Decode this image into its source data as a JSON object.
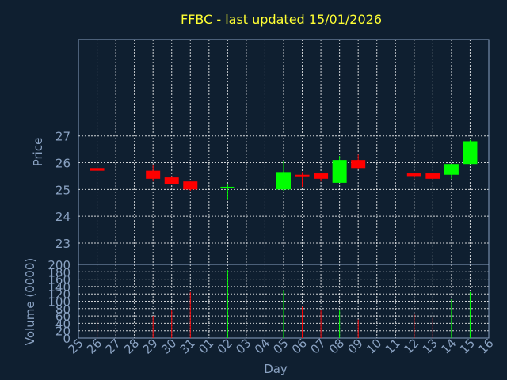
{
  "chart_data": {
    "type": "candlestick",
    "title": "FFBC - last updated 15/01/2026",
    "xlabel": "Day",
    "price_ylabel": "Price",
    "volume_ylabel": "Volume (0000)",
    "x_ticks": [
      "25",
      "26",
      "27",
      "28",
      "29",
      "30",
      "31",
      "01",
      "02",
      "03",
      "04",
      "05",
      "06",
      "07",
      "08",
      "09",
      "10",
      "11",
      "12",
      "13",
      "14",
      "15",
      "16"
    ],
    "price_ylim": [
      22.2,
      30.6
    ],
    "price_ticks": [
      23,
      24,
      25,
      26,
      27
    ],
    "volume_ylim": [
      0,
      200
    ],
    "volume_ticks": [
      0,
      20,
      40,
      60,
      80,
      100,
      120,
      140,
      160,
      180,
      200
    ],
    "grid": true,
    "up_color": "#00ff00",
    "down_color": "#ff0000",
    "candles": [
      {
        "day": "26",
        "open": 25.8,
        "high": 25.8,
        "low": 25.7,
        "close": 25.7,
        "volume": 50
      },
      {
        "day": "29",
        "open": 25.7,
        "high": 25.9,
        "low": 25.3,
        "close": 25.4,
        "volume": 60
      },
      {
        "day": "30",
        "open": 25.45,
        "high": 25.5,
        "low": 25.2,
        "close": 25.2,
        "volume": 75
      },
      {
        "day": "31",
        "open": 25.3,
        "high": 25.3,
        "low": 24.95,
        "close": 25.0,
        "volume": 125
      },
      {
        "day": "02",
        "open": 25.05,
        "high": 25.2,
        "low": 24.6,
        "close": 25.1,
        "volume": 185
      },
      {
        "day": "05",
        "open": 25.0,
        "high": 26.05,
        "low": 24.95,
        "close": 25.65,
        "volume": 130
      },
      {
        "day": "06",
        "open": 25.55,
        "high": 25.65,
        "low": 25.1,
        "close": 25.5,
        "volume": 85
      },
      {
        "day": "07",
        "open": 25.6,
        "high": 25.6,
        "low": 25.3,
        "close": 25.4,
        "volume": 75
      },
      {
        "day": "08",
        "open": 25.25,
        "high": 26.25,
        "low": 25.25,
        "close": 26.1,
        "volume": 75
      },
      {
        "day": "09",
        "open": 26.1,
        "high": 26.3,
        "low": 25.75,
        "close": 25.8,
        "volume": 50
      },
      {
        "day": "12",
        "open": 25.6,
        "high": 25.6,
        "low": 25.4,
        "close": 25.5,
        "volume": 65
      },
      {
        "day": "13",
        "open": 25.6,
        "high": 25.6,
        "low": 25.35,
        "close": 25.4,
        "volume": 55
      },
      {
        "day": "14",
        "open": 25.55,
        "high": 25.95,
        "low": 25.4,
        "close": 25.95,
        "volume": 105
      },
      {
        "day": "15",
        "open": 25.95,
        "high": 26.85,
        "low": 25.95,
        "close": 26.8,
        "volume": 125
      }
    ]
  }
}
